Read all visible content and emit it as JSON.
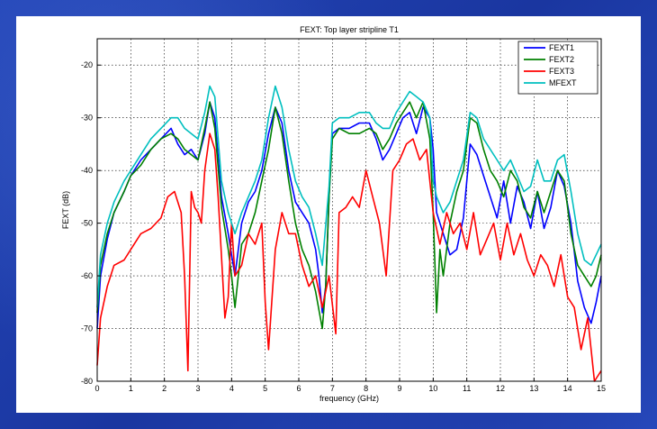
{
  "chart_data": {
    "type": "line",
    "title": "FEXT: Top layer stripline T1",
    "xlabel": "frequency (GHz)",
    "ylabel": "FEXT (dB)",
    "xlim": [
      0,
      15
    ],
    "ylim": [
      -80,
      -15
    ],
    "xticks": [
      0,
      1,
      2,
      3,
      4,
      5,
      6,
      7,
      8,
      9,
      10,
      11,
      12,
      13,
      14,
      15
    ],
    "yticks": [
      -80,
      -70,
      -60,
      -50,
      -40,
      -30,
      -20
    ],
    "grid": true,
    "legend_position": "top-right",
    "series": [
      {
        "name": "FEXT1",
        "color": "#0000ff",
        "x": [
          0,
          0.1,
          0.3,
          0.5,
          0.8,
          1.0,
          1.3,
          1.6,
          1.9,
          2.2,
          2.4,
          2.6,
          2.8,
          3.0,
          3.2,
          3.35,
          3.5,
          3.7,
          3.9,
          4.0,
          4.1,
          4.3,
          4.5,
          4.7,
          4.9,
          5.1,
          5.3,
          5.5,
          5.7,
          5.9,
          6.1,
          6.3,
          6.5,
          6.6,
          6.7,
          6.8,
          6.9,
          7.0,
          7.2,
          7.5,
          7.8,
          8.1,
          8.3,
          8.5,
          8.7,
          8.9,
          9.1,
          9.3,
          9.5,
          9.7,
          9.9,
          10.0,
          10.1,
          10.3,
          10.5,
          10.7,
          10.9,
          11.1,
          11.3,
          11.5,
          11.7,
          11.9,
          12.1,
          12.3,
          12.5,
          12.7,
          12.9,
          13.1,
          13.3,
          13.5,
          13.7,
          13.9,
          14.1,
          14.3,
          14.5,
          14.7,
          14.85,
          15
        ],
        "y": [
          -70,
          -60,
          -53,
          -48,
          -44,
          -41,
          -38,
          -36,
          -34,
          -32,
          -35,
          -37,
          -36,
          -38,
          -33,
          -27,
          -30,
          -45,
          -52,
          -56,
          -60,
          -50,
          -46,
          -44,
          -40,
          -33,
          -28,
          -31,
          -40,
          -46,
          -48,
          -50,
          -55,
          -60,
          -67,
          -62,
          -45,
          -33,
          -32,
          -32,
          -31,
          -31,
          -34,
          -38,
          -36,
          -33,
          -30,
          -29,
          -33,
          -28,
          -30,
          -36,
          -48,
          -52,
          -56,
          -55,
          -49,
          -35,
          -37,
          -41,
          -45,
          -49,
          -42,
          -50,
          -43,
          -46,
          -51,
          -44,
          -51,
          -47,
          -40,
          -43,
          -50,
          -61,
          -66,
          -69,
          -65,
          -60
        ]
      },
      {
        "name": "FEXT2",
        "color": "#008000",
        "x": [
          0,
          0.1,
          0.3,
          0.5,
          0.8,
          1.0,
          1.3,
          1.6,
          1.9,
          2.2,
          2.4,
          2.6,
          2.8,
          3.0,
          3.2,
          3.35,
          3.5,
          3.7,
          3.9,
          4.0,
          4.1,
          4.3,
          4.5,
          4.7,
          4.9,
          5.1,
          5.3,
          5.5,
          5.7,
          5.9,
          6.1,
          6.3,
          6.5,
          6.7,
          6.8,
          6.9,
          7.0,
          7.2,
          7.5,
          7.8,
          8.1,
          8.3,
          8.5,
          8.7,
          8.9,
          9.1,
          9.3,
          9.5,
          9.7,
          9.9,
          10.0,
          10.1,
          10.2,
          10.3,
          10.5,
          10.7,
          10.9,
          11.1,
          11.3,
          11.5,
          11.7,
          11.9,
          12.1,
          12.3,
          12.5,
          12.7,
          12.9,
          13.1,
          13.3,
          13.5,
          13.7,
          13.9,
          14.1,
          14.3,
          14.5,
          14.7,
          14.85,
          15
        ],
        "y": [
          -67,
          -58,
          -52,
          -48,
          -44,
          -41,
          -39,
          -36,
          -34,
          -33,
          -34,
          -36,
          -37,
          -38,
          -32,
          -27,
          -32,
          -47,
          -55,
          -60,
          -66,
          -54,
          -52,
          -48,
          -42,
          -36,
          -28,
          -33,
          -42,
          -50,
          -55,
          -58,
          -63,
          -70,
          -62,
          -45,
          -34,
          -32,
          -33,
          -33,
          -32,
          -33,
          -36,
          -34,
          -31,
          -29,
          -27,
          -30,
          -27,
          -34,
          -48,
          -67,
          -55,
          -60,
          -50,
          -44,
          -40,
          -30,
          -31,
          -36,
          -40,
          -42,
          -45,
          -40,
          -42,
          -47,
          -49,
          -44,
          -48,
          -44,
          -40,
          -42,
          -52,
          -58,
          -60,
          -62,
          -60,
          -56
        ]
      },
      {
        "name": "FEXT3",
        "color": "#ff0000",
        "x": [
          0,
          0.1,
          0.3,
          0.5,
          0.8,
          1.0,
          1.3,
          1.6,
          1.9,
          2.1,
          2.3,
          2.5,
          2.6,
          2.7,
          2.8,
          2.9,
          3.0,
          3.1,
          3.2,
          3.35,
          3.5,
          3.6,
          3.8,
          3.9,
          4.0,
          4.1,
          4.3,
          4.5,
          4.7,
          4.9,
          5.0,
          5.1,
          5.3,
          5.5,
          5.7,
          5.9,
          6.1,
          6.3,
          6.5,
          6.7,
          6.9,
          7.1,
          7.2,
          7.4,
          7.6,
          7.8,
          8.0,
          8.2,
          8.4,
          8.6,
          8.8,
          9.0,
          9.2,
          9.4,
          9.6,
          9.8,
          10.0,
          10.2,
          10.4,
          10.6,
          10.8,
          11.0,
          11.2,
          11.4,
          11.6,
          11.8,
          12.0,
          12.2,
          12.4,
          12.6,
          12.8,
          13.0,
          13.2,
          13.4,
          13.6,
          13.8,
          14.0,
          14.2,
          14.4,
          14.6,
          14.8,
          15
        ],
        "y": [
          -77,
          -68,
          -62,
          -58,
          -57,
          -55,
          -52,
          -51,
          -49,
          -45,
          -44,
          -48,
          -60,
          -78,
          -44,
          -47,
          -48,
          -50,
          -40,
          -33,
          -36,
          -45,
          -68,
          -64,
          -50,
          -60,
          -58,
          -52,
          -54,
          -50,
          -65,
          -74,
          -55,
          -48,
          -52,
          -52,
          -58,
          -62,
          -60,
          -66,
          -60,
          -71,
          -48,
          -47,
          -45,
          -47,
          -40,
          -45,
          -50,
          -60,
          -40,
          -38,
          -35,
          -34,
          -38,
          -36,
          -48,
          -54,
          -48,
          -52,
          -50,
          -55,
          -48,
          -56,
          -53,
          -50,
          -57,
          -50,
          -56,
          -52,
          -57,
          -60,
          -56,
          -58,
          -62,
          -56,
          -64,
          -66,
          -74,
          -68,
          -80,
          -78
        ]
      },
      {
        "name": "MFEXT",
        "color": "#00bfbf",
        "x": [
          0,
          0.1,
          0.3,
          0.5,
          0.8,
          1.0,
          1.3,
          1.6,
          1.9,
          2.2,
          2.4,
          2.6,
          2.8,
          3.0,
          3.2,
          3.35,
          3.5,
          3.7,
          3.9,
          4.1,
          4.3,
          4.5,
          4.7,
          4.9,
          5.1,
          5.3,
          5.5,
          5.7,
          5.9,
          6.1,
          6.3,
          6.5,
          6.7,
          6.9,
          7.0,
          7.2,
          7.5,
          7.8,
          8.1,
          8.3,
          8.5,
          8.7,
          8.9,
          9.1,
          9.3,
          9.5,
          9.7,
          9.9,
          10.0,
          10.1,
          10.3,
          10.5,
          10.7,
          10.9,
          11.1,
          11.3,
          11.5,
          11.7,
          11.9,
          12.1,
          12.3,
          12.5,
          12.7,
          12.9,
          13.1,
          13.3,
          13.5,
          13.7,
          13.9,
          14.1,
          14.3,
          14.5,
          14.7,
          14.85,
          15
        ],
        "y": [
          -66,
          -56,
          -50,
          -46,
          -42,
          -40,
          -37,
          -34,
          -32,
          -30,
          -30,
          -32,
          -33,
          -34,
          -29,
          -24,
          -26,
          -42,
          -48,
          -52,
          -48,
          -45,
          -42,
          -38,
          -30,
          -24,
          -28,
          -36,
          -42,
          -45,
          -47,
          -52,
          -58,
          -43,
          -31,
          -30,
          -30,
          -29,
          -29,
          -31,
          -32,
          -32,
          -29,
          -27,
          -25,
          -26,
          -27,
          -30,
          -42,
          -45,
          -48,
          -46,
          -42,
          -38,
          -29,
          -30,
          -34,
          -36,
          -38,
          -40,
          -38,
          -41,
          -44,
          -43,
          -38,
          -42,
          -42,
          -38,
          -37,
          -44,
          -52,
          -57,
          -58,
          -56,
          -54
        ]
      }
    ]
  }
}
